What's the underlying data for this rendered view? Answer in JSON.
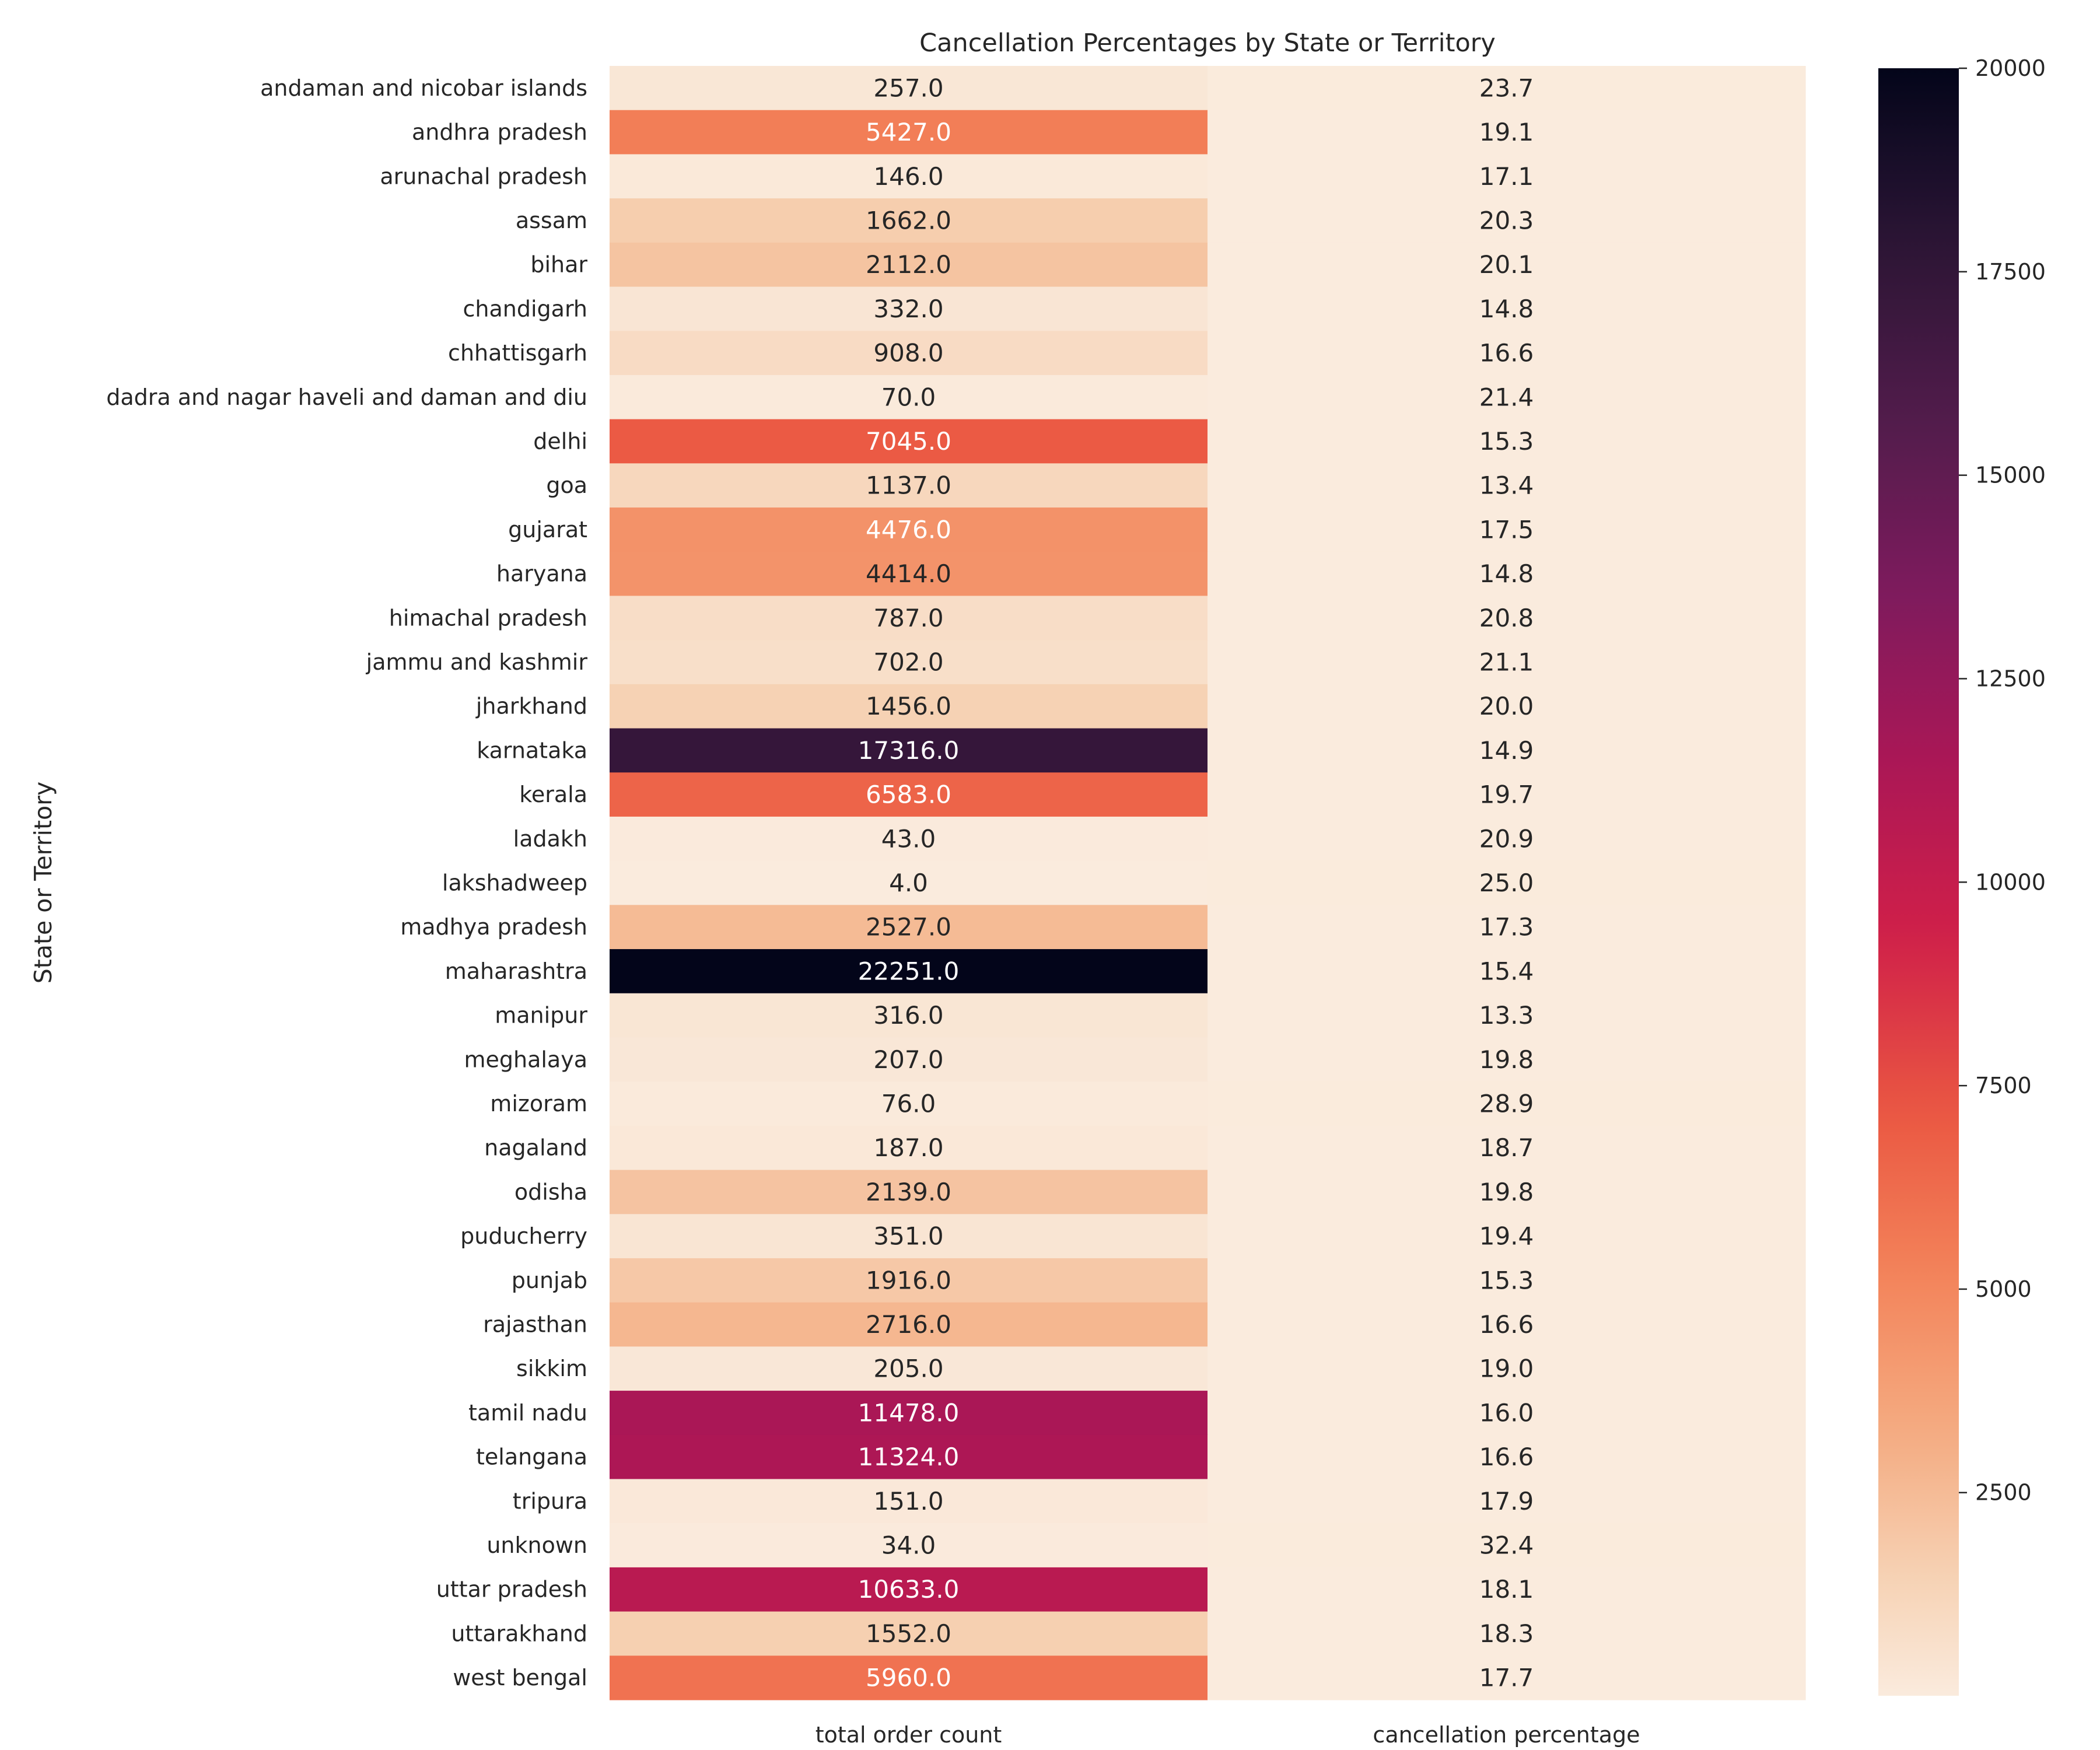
{
  "chart_data": {
    "type": "heatmap",
    "title": "Cancellation Percentages by State or Territory",
    "ylabel": "State or Territory",
    "xlabel": "",
    "columns": [
      "total order count",
      "cancellation percentage"
    ],
    "rows": [
      "andaman and nicobar islands",
      "andhra pradesh",
      "arunachal pradesh",
      "assam",
      "bihar",
      "chandigarh",
      "chhattisgarh",
      "dadra and nagar haveli and daman and diu",
      "delhi",
      "goa",
      "gujarat",
      "haryana",
      "himachal pradesh",
      "jammu and kashmir",
      "jharkhand",
      "karnataka",
      "kerala",
      "ladakh",
      "lakshadweep",
      "madhya pradesh",
      "maharashtra",
      "manipur",
      "meghalaya",
      "mizoram",
      "nagaland",
      "odisha",
      "puducherry",
      "punjab",
      "rajasthan",
      "sikkim",
      "tamil nadu",
      "telangana",
      "tripura",
      "unknown",
      "uttar pradesh",
      "uttarakhand",
      "west bengal"
    ],
    "values": [
      [
        257.0,
        23.7
      ],
      [
        5427.0,
        19.1
      ],
      [
        146.0,
        17.1
      ],
      [
        1662.0,
        20.3
      ],
      [
        2112.0,
        20.1
      ],
      [
        332.0,
        14.8
      ],
      [
        908.0,
        16.6
      ],
      [
        70.0,
        21.4
      ],
      [
        7045.0,
        15.3
      ],
      [
        1137.0,
        13.4
      ],
      [
        4476.0,
        17.5
      ],
      [
        4414.0,
        14.8
      ],
      [
        787.0,
        20.8
      ],
      [
        702.0,
        21.1
      ],
      [
        1456.0,
        20.0
      ],
      [
        17316.0,
        14.9
      ],
      [
        6583.0,
        19.7
      ],
      [
        43.0,
        20.9
      ],
      [
        4.0,
        25.0
      ],
      [
        2527.0,
        17.3
      ],
      [
        22251.0,
        15.4
      ],
      [
        316.0,
        13.3
      ],
      [
        207.0,
        19.8
      ],
      [
        76.0,
        28.9
      ],
      [
        187.0,
        18.7
      ],
      [
        2139.0,
        19.8
      ],
      [
        351.0,
        19.4
      ],
      [
        1916.0,
        15.3
      ],
      [
        2716.0,
        16.6
      ],
      [
        205.0,
        19.0
      ],
      [
        11478.0,
        16.0
      ],
      [
        11324.0,
        16.6
      ],
      [
        151.0,
        17.9
      ],
      [
        34.0,
        32.4
      ],
      [
        10633.0,
        18.1
      ],
      [
        1552.0,
        18.3
      ],
      [
        5960.0,
        17.7
      ]
    ],
    "annotation_format": "0.1f",
    "colormap": "rocket_r",
    "vmin": 4,
    "vmax": 20000,
    "colorbar_ticks": [
      2500,
      5000,
      7500,
      10000,
      12500,
      15000,
      17500,
      20000
    ],
    "grid": false
  }
}
